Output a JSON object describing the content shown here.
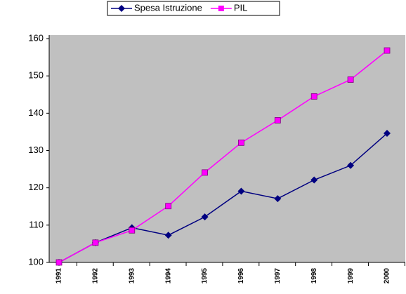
{
  "chart_data": {
    "type": "line",
    "categories": [
      "1991",
      "1992",
      "1993",
      "1994",
      "1995",
      "1996",
      "1997",
      "1998",
      "1999",
      "2000"
    ],
    "series": [
      {
        "name": "Spesa Istruzione",
        "color": "#000080",
        "marker": "diamond",
        "values": [
          100,
          105.3,
          109.3,
          107.3,
          112.2,
          119.1,
          117.1,
          122.1,
          126,
          134.6
        ]
      },
      {
        "name": "PIL",
        "color": "#ff00ff",
        "marker": "square",
        "values": [
          100,
          105.3,
          108.6,
          115.1,
          124.1,
          132.1,
          138.1,
          144.5,
          149,
          156.8
        ]
      }
    ],
    "ylim": [
      100,
      160
    ],
    "yticks": [
      100,
      110,
      120,
      130,
      140,
      150,
      160
    ],
    "grid": false,
    "plot_background": "#c0c0c0",
    "legend": "top"
  }
}
